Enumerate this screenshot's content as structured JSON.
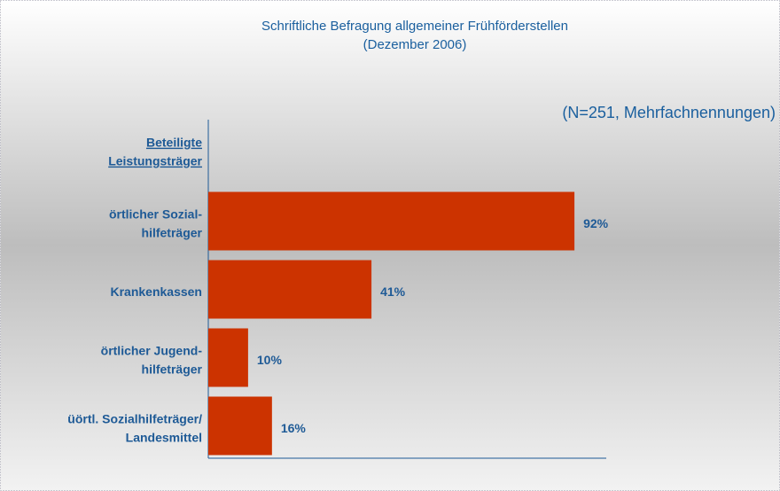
{
  "chart_data": {
    "type": "bar",
    "orientation": "horizontal",
    "title": "Schriftliche Befragung allgemeiner Frühförderstellen",
    "subtitle": "(Dezember 2006)",
    "note": "(N=251, Mehrfachnennungen)",
    "axis_label": [
      "Beteiligte",
      "Leistungsträger"
    ],
    "categories": [
      [
        "örtlicher Sozial-",
        "hilfeträger"
      ],
      [
        "Krankenkassen"
      ],
      [
        "örtlicher Jugend-",
        "hilfeträger"
      ],
      [
        "üörtl. Sozialhilfeträger/",
        "Landesmittel"
      ]
    ],
    "values": [
      92,
      41,
      10,
      16
    ],
    "value_labels": [
      "92%",
      "41%",
      "10%",
      "16%"
    ],
    "color": "#cc3300",
    "xlim": [
      0,
      100
    ]
  }
}
